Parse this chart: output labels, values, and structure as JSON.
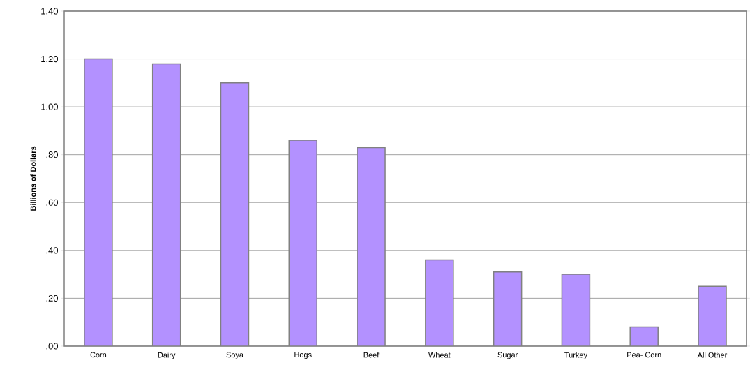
{
  "chart_data": {
    "type": "bar",
    "ylabel": "Billions of Dollars",
    "categories": [
      "Corn",
      "Dairy",
      "Soya",
      "Hogs",
      "Beef",
      "Wheat",
      "Sugar",
      "Turkey",
      "Pea- Corn",
      "All  Other"
    ],
    "values": [
      1.2,
      1.18,
      1.1,
      0.86,
      0.83,
      0.36,
      0.31,
      0.3,
      0.08,
      0.25
    ],
    "color": "#b391ff",
    "ylim": [
      0,
      1.4
    ],
    "yticks": [
      {
        "value": 0,
        "label": ".00"
      },
      {
        "value": 0.2,
        "label": ".20"
      },
      {
        "value": 0.4,
        "label": ".40"
      },
      {
        "value": 0.6,
        "label": ".60"
      },
      {
        "value": 0.8,
        "label": ".80"
      },
      {
        "value": 1.0,
        "label": "1.00"
      },
      {
        "value": 1.2,
        "label": "1.20"
      },
      {
        "value": 1.4,
        "label": "1.40"
      }
    ],
    "grid": "y"
  }
}
